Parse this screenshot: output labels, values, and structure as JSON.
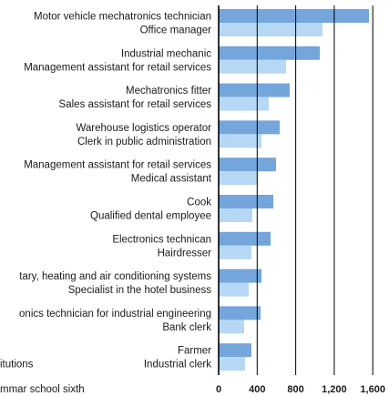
{
  "chart_data": {
    "type": "bar",
    "orientation": "horizontal",
    "series": [
      {
        "color": "#74a6dc",
        "labels": [
          "Motor vehicle mechatronics technician",
          "Industrial mechanic",
          "Mechatronics fitter",
          "Warehouse logistics operator",
          "Management assistant for retail services",
          "Cook",
          "Electronics technican",
          "tary, heating and air conditioning systems",
          "onics technician for industrial engineering",
          "Farmer"
        ],
        "values": [
          1561,
          1050,
          738,
          634,
          596,
          568,
          539,
          445,
          435,
          340
        ]
      },
      {
        "color": "#b7d8f5",
        "labels": [
          "Office manager",
          "Management assistant for retail services",
          "Sales assistant for retail services",
          "Clerk in public administration",
          "Medical assistant",
          "Qualified dental employee",
          "Hairdresser",
          "Specialist in the hotel business",
          "Bank clerk",
          "Industrial clerk"
        ],
        "values": [
          1078,
          700,
          520,
          445,
          407,
          350,
          340,
          312,
          265,
          274
        ]
      }
    ],
    "clipped_texts": [
      "itutions",
      "mmar school sixth"
    ],
    "xlim": [
      0,
      1640
    ],
    "xticks": [
      0,
      400,
      800,
      {
        "value": 1200,
        "label": "1,200"
      },
      {
        "value": 1600,
        "label": "1,600"
      }
    ],
    "grid": true
  }
}
